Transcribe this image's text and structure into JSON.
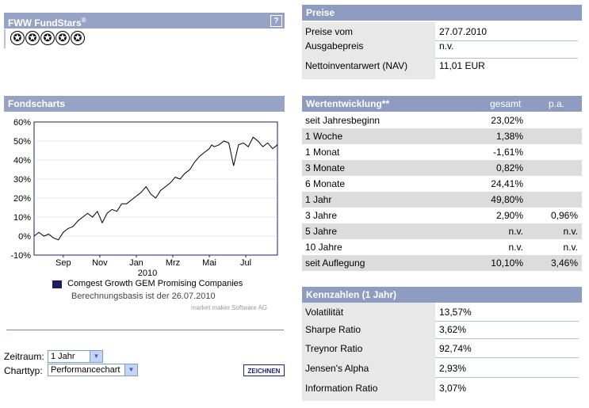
{
  "fundstars": {
    "title": "FWW FundStars",
    "superscript": "®",
    "help": "?",
    "stars": [
      "✪",
      "✪",
      "✪",
      "✪",
      "✪"
    ]
  },
  "preise": {
    "title": "Preise",
    "rows": [
      {
        "label": "Preise vom",
        "value": "27.07.2010"
      },
      {
        "label": "Ausgabepreis",
        "value": "n.v."
      },
      {
        "label": "Nettoinventarwert (NAV)",
        "value": "11,01 EUR"
      }
    ]
  },
  "wertentwicklung": {
    "title": "Wertentwicklung**",
    "col_gesamt": "gesamt",
    "col_pa": "p.a.",
    "rows": [
      {
        "label": "seit Jahresbeginn",
        "gesamt": "23,02%",
        "pa": ""
      },
      {
        "label": "1 Woche",
        "gesamt": "1,38%",
        "pa": ""
      },
      {
        "label": "1 Monat",
        "gesamt": "-1,61%",
        "pa": ""
      },
      {
        "label": "3 Monate",
        "gesamt": "0,82%",
        "pa": ""
      },
      {
        "label": "6 Monate",
        "gesamt": "24,41%",
        "pa": ""
      },
      {
        "label": "1 Jahr",
        "gesamt": "49,80%",
        "pa": ""
      },
      {
        "label": "3 Jahre",
        "gesamt": "2,90%",
        "pa": "0,96%"
      },
      {
        "label": "5 Jahre",
        "gesamt": "n.v.",
        "pa": "n.v."
      },
      {
        "label": "10 Jahre",
        "gesamt": "n.v.",
        "pa": "n.v."
      },
      {
        "label": "seit Auflegung",
        "gesamt": "10,10%",
        "pa": "3,46%"
      }
    ]
  },
  "kennzahlen": {
    "title": "Kennzahlen (1 Jahr)",
    "rows": [
      {
        "label": "Volatilität",
        "value": "13,57%"
      },
      {
        "label": "Sharpe Ratio",
        "value": "3,62%"
      },
      {
        "label": "Treynor Ratio",
        "value": "92,74%"
      },
      {
        "label": "Jensen's Alpha",
        "value": "2,93%"
      },
      {
        "label": "Information Ratio",
        "value": "3,07%"
      }
    ]
  },
  "fondscharts": {
    "title": "Fondscharts",
    "legend": "Comgest Growth GEM Promising Companies",
    "legend_color": "#1a1f5c",
    "basis": "Berechnungsbasis ist der 26.07.2010",
    "credit": "market maker Software AG",
    "zeitraum_label": "Zeitraum:",
    "zeitraum_value": "1 Jahr",
    "charttyp_label": "Charttyp:",
    "charttyp_value": "Performancechart",
    "zeichnen": "ZEICHNEN"
  },
  "chart_data": {
    "type": "line",
    "ylim": [
      -10,
      60
    ],
    "yticks": [
      "60%",
      "50%",
      "40%",
      "30%",
      "20%",
      "10%",
      "0%",
      "-10%"
    ],
    "ytick_values": [
      60,
      50,
      40,
      30,
      20,
      10,
      0,
      -10
    ],
    "xticks": [
      "Sep",
      "Nov",
      "Jan",
      "Mrz",
      "Mai",
      "Jul"
    ],
    "xtick_positions": [
      0.12,
      0.27,
      0.42,
      0.57,
      0.72,
      0.87
    ],
    "xsub": "2010",
    "x": [
      0,
      0.02,
      0.04,
      0.06,
      0.08,
      0.1,
      0.12,
      0.14,
      0.16,
      0.18,
      0.2,
      0.22,
      0.24,
      0.26,
      0.28,
      0.3,
      0.32,
      0.34,
      0.36,
      0.38,
      0.4,
      0.42,
      0.44,
      0.46,
      0.48,
      0.5,
      0.52,
      0.54,
      0.56,
      0.58,
      0.6,
      0.62,
      0.64,
      0.66,
      0.68,
      0.7,
      0.72,
      0.73,
      0.74,
      0.76,
      0.78,
      0.8,
      0.82,
      0.84,
      0.86,
      0.88,
      0.9,
      0.92,
      0.94,
      0.96,
      0.98,
      1.0
    ],
    "y": [
      0,
      2,
      0,
      1,
      -1,
      -2,
      2,
      4,
      5,
      8,
      10,
      12,
      10,
      13,
      7,
      12,
      14,
      13,
      17,
      17,
      19,
      21,
      23,
      26,
      22,
      20,
      24,
      26,
      28,
      31,
      30,
      33,
      35,
      39,
      42,
      44,
      46,
      48,
      47,
      48,
      50,
      49,
      37,
      48,
      49,
      47,
      52,
      50,
      47,
      49,
      46,
      48
    ]
  },
  "colors": {
    "header": "#97a3c4",
    "alt_row": "#dcdcdc",
    "label_bg": "#e8e8e8",
    "line": "#000000"
  }
}
